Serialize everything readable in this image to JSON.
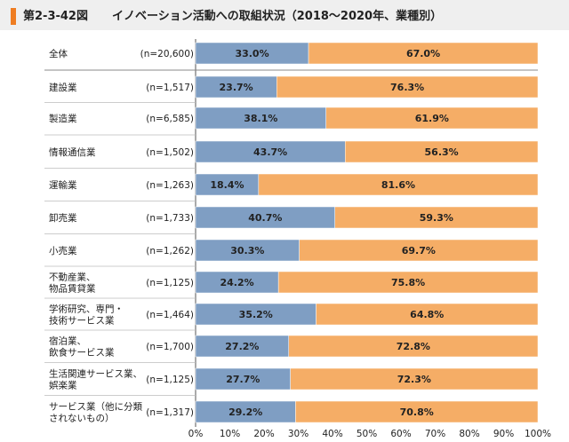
{
  "header": {
    "figure_number": "第2-3-42図",
    "title": "イノベーション活動への取組状況（2018～2020年、業種別）"
  },
  "colors": {
    "innovation_active": "#7f9ec3",
    "innovation_inactive": "#f5ad66",
    "accent": "#ef7d22"
  },
  "chart_data": {
    "type": "bar",
    "orientation": "horizontal",
    "stacked": true,
    "percent": true,
    "title": "イノベーション活動への取組状況（2018～2020年、業種別）",
    "xlabel": "",
    "ylabel": "",
    "xlim": [
      0,
      100
    ],
    "x_ticks": [
      "0%",
      "10%",
      "20%",
      "30%",
      "40%",
      "50%",
      "60%",
      "70%",
      "80%",
      "90%",
      "100%"
    ],
    "categories": [
      {
        "lines": [
          "全体"
        ],
        "n": "(n=20,600)"
      },
      {
        "lines": [
          "建設業"
        ],
        "n": "(n=1,517)"
      },
      {
        "lines": [
          "製造業"
        ],
        "n": "(n=6,585)"
      },
      {
        "lines": [
          "情報通信業"
        ],
        "n": "(n=1,502)"
      },
      {
        "lines": [
          "運輸業"
        ],
        "n": "(n=1,263)"
      },
      {
        "lines": [
          "卸売業"
        ],
        "n": "(n=1,733)"
      },
      {
        "lines": [
          "小売業"
        ],
        "n": "(n=1,262)"
      },
      {
        "lines": [
          "不動産業、",
          "物品賃貸業"
        ],
        "n": "(n=1,125)"
      },
      {
        "lines": [
          "学術研究、専門・",
          "技術サービス業"
        ],
        "n": "(n=1,464)"
      },
      {
        "lines": [
          "宿泊業、",
          "飲食サービス業"
        ],
        "n": "(n=1,700)"
      },
      {
        "lines": [
          "生活関連サービス業、",
          "娯楽業"
        ],
        "n": "(n=1,125)"
      },
      {
        "lines": [
          "サービス業（他に分類",
          "されないもの）"
        ],
        "n": "(n=1,317)"
      }
    ],
    "series": [
      {
        "name": "series-1",
        "values": [
          33.0,
          23.7,
          38.1,
          43.7,
          18.4,
          40.7,
          30.3,
          24.2,
          35.2,
          27.2,
          27.7,
          29.2
        ],
        "labels": [
          "33.0%",
          "23.7%",
          "38.1%",
          "43.7%",
          "18.4%",
          "40.7%",
          "30.3%",
          "24.2%",
          "35.2%",
          "27.2%",
          "27.7%",
          "29.2%"
        ]
      },
      {
        "name": "series-2",
        "values": [
          67.0,
          76.3,
          61.9,
          56.3,
          81.6,
          59.3,
          69.7,
          75.8,
          64.8,
          72.8,
          72.3,
          70.8
        ],
        "labels": [
          "67.0%",
          "76.3%",
          "61.9%",
          "56.3%",
          "81.6%",
          "59.3%",
          "69.7%",
          "75.8%",
          "64.8%",
          "72.8%",
          "72.3%",
          "70.8%"
        ]
      }
    ]
  }
}
